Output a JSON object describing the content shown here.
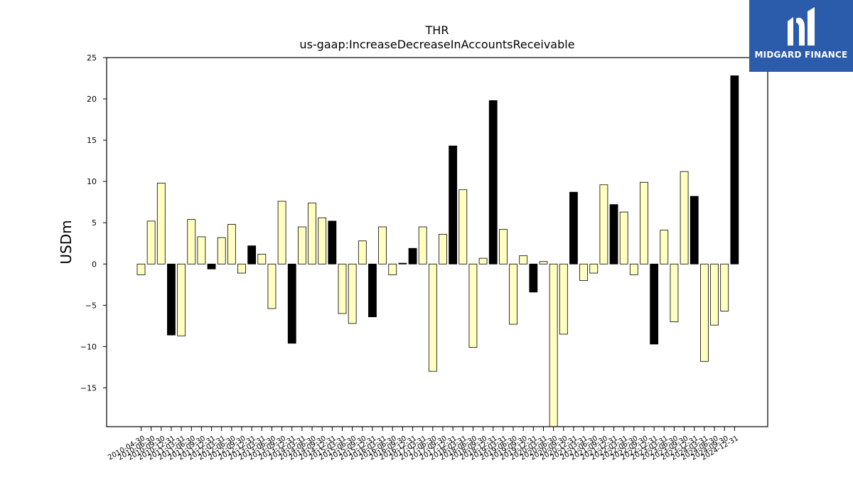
{
  "header": {
    "title": "THR",
    "subtitle": "us-gaap:IncreaseDecreaseInAccountsReceivable"
  },
  "brand": {
    "name": "MIDGARD FINANCE",
    "color": "#2b5bab"
  },
  "colors": {
    "positive_bar": "#ffffc0",
    "highlight_bar": "#000000",
    "bar_edge": "#000000"
  },
  "chart_data": {
    "type": "bar",
    "ylabel": "USDm",
    "ylim": [
      -19.7,
      25
    ],
    "yticks": [
      -15,
      -10,
      -5,
      0,
      5,
      10,
      15,
      20,
      25
    ],
    "categories": [
      "2010-04-30",
      "2010-06-30",
      "2010-09-30",
      "2010-12-31",
      "2011-03-31",
      "2011-06-30",
      "2011-09-30",
      "2011-12-31",
      "2012-03-31",
      "2012-06-30",
      "2012-09-30",
      "2012-12-31",
      "2013-03-31",
      "2013-06-30",
      "2013-09-30",
      "2013-12-31",
      "2014-03-31",
      "2014-06-30",
      "2014-09-30",
      "2014-12-31",
      "2015-03-31",
      "2015-06-30",
      "2015-09-30",
      "2015-12-31",
      "2016-03-31",
      "2016-06-30",
      "2016-09-30",
      "2016-12-31",
      "2017-03-31",
      "2017-06-30",
      "2017-09-30",
      "2017-12-31",
      "2018-03-31",
      "2018-06-30",
      "2018-09-30",
      "2018-12-31",
      "2019-03-31",
      "2019-06-30",
      "2019-09-30",
      "2019-12-31",
      "2020-03-31",
      "2020-06-30",
      "2020-09-30",
      "2020-12-31",
      "2021-03-31",
      "2021-06-30",
      "2021-09-30",
      "2021-12-31",
      "2022-03-31",
      "2022-06-30",
      "2022-09-30",
      "2022-12-31",
      "2023-03-31",
      "2023-06-30",
      "2023-09-30",
      "2023-12-31",
      "2024-03-31",
      "2024-06-30",
      "2024-09-30",
      "2024-12-31"
    ],
    "values": [
      -1.3,
      5.2,
      9.8,
      -8.6,
      -8.7,
      5.4,
      3.3,
      -0.6,
      3.2,
      4.8,
      -1.1,
      2.2,
      1.2,
      -5.4,
      7.6,
      -9.6,
      4.5,
      7.4,
      5.6,
      5.2,
      -6.0,
      -7.2,
      2.8,
      -6.4,
      4.5,
      -1.3,
      0.1,
      1.9,
      4.5,
      -13.0,
      3.6,
      14.3,
      9.0,
      -10.1,
      0.7,
      19.8,
      4.2,
      -7.3,
      1.0,
      -3.4,
      0.3,
      -19.7,
      -8.5,
      8.7,
      -2.0,
      -1.1,
      9.6,
      7.2,
      6.3,
      -1.3,
      9.9,
      -9.7,
      4.1,
      -7.0,
      11.2,
      8.2,
      -11.8,
      -7.4,
      -5.7,
      22.8
    ],
    "highlighted": [
      false,
      false,
      false,
      true,
      false,
      false,
      false,
      true,
      false,
      false,
      false,
      true,
      false,
      false,
      false,
      true,
      false,
      false,
      false,
      true,
      false,
      false,
      false,
      true,
      false,
      false,
      true,
      true,
      false,
      false,
      false,
      true,
      false,
      false,
      false,
      true,
      false,
      false,
      false,
      true,
      false,
      false,
      false,
      true,
      false,
      false,
      false,
      true,
      false,
      false,
      false,
      true,
      false,
      false,
      false,
      true,
      false,
      false,
      false,
      true
    ],
    "grid": false,
    "legend": "none"
  }
}
